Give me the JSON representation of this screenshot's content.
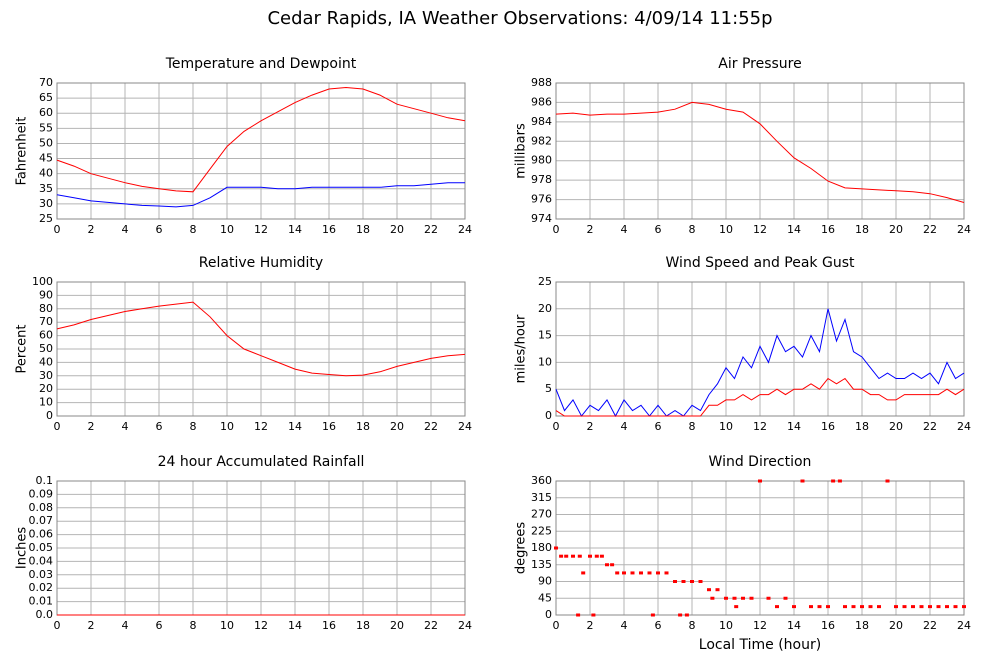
{
  "title": "Cedar Rapids, IA Weather Observations: 4/09/14 11:55p",
  "chart_data": [
    {
      "type": "line",
      "title": "Temperature and Dewpoint",
      "ylabel": "Fahrenheit",
      "x": [
        0,
        1,
        2,
        3,
        4,
        5,
        6,
        7,
        8,
        9,
        10,
        11,
        12,
        13,
        14,
        15,
        16,
        17,
        18,
        19,
        20,
        21,
        22,
        23,
        24
      ],
      "series": [
        {
          "color": "#ff0000",
          "values": [
            44.5,
            42.5,
            40,
            38.5,
            37,
            35.8,
            35,
            34.3,
            34,
            41.5,
            49,
            54,
            57.5,
            60.5,
            63.5,
            66,
            68,
            68.5,
            68,
            66,
            63,
            61.5,
            60,
            58.5,
            57.5
          ]
        },
        {
          "color": "#0000ff",
          "values": [
            33,
            32,
            31,
            30.5,
            30,
            29.5,
            29.3,
            29,
            29.5,
            32,
            35.5,
            35.5,
            35.5,
            35,
            35,
            35.5,
            35.5,
            35.5,
            35.5,
            35.5,
            36,
            36,
            36.5,
            37,
            37
          ]
        }
      ],
      "xlim": [
        0,
        24
      ],
      "xticks": [
        0,
        2,
        4,
        6,
        8,
        10,
        12,
        14,
        16,
        18,
        20,
        22,
        24
      ],
      "ylim": [
        25,
        70
      ],
      "yticks": [
        25,
        30,
        35,
        40,
        45,
        50,
        55,
        60,
        65,
        70
      ],
      "grid": true
    },
    {
      "type": "line",
      "title": "Air Pressure",
      "ylabel": "millibars",
      "x": [
        0,
        1,
        2,
        3,
        4,
        5,
        6,
        7,
        8,
        9,
        10,
        11,
        12,
        13,
        14,
        15,
        16,
        17,
        18,
        19,
        20,
        21,
        22,
        23,
        24
      ],
      "series": [
        {
          "color": "#ff0000",
          "values": [
            984.8,
            984.9,
            984.7,
            984.8,
            984.8,
            984.9,
            985,
            985.3,
            986,
            985.8,
            985.3,
            985,
            983.8,
            982,
            980.3,
            979.2,
            977.9,
            977.2,
            977.1,
            977,
            976.9,
            976.8,
            976.6,
            976.2,
            975.7
          ]
        }
      ],
      "xlim": [
        0,
        24
      ],
      "xticks": [
        0,
        2,
        4,
        6,
        8,
        10,
        12,
        14,
        16,
        18,
        20,
        22,
        24
      ],
      "ylim": [
        974,
        988
      ],
      "yticks": [
        974,
        976,
        978,
        980,
        982,
        984,
        986,
        988
      ],
      "grid": true
    },
    {
      "type": "line",
      "title": "Relative Humidity",
      "ylabel": "Percent",
      "x": [
        0,
        1,
        2,
        3,
        4,
        5,
        6,
        7,
        8,
        9,
        10,
        11,
        12,
        13,
        14,
        15,
        16,
        17,
        18,
        19,
        20,
        21,
        22,
        23,
        24
      ],
      "series": [
        {
          "color": "#ff0000",
          "values": [
            65,
            68,
            72,
            75,
            78,
            80,
            82,
            83.5,
            85,
            74,
            60,
            50,
            45,
            40,
            35,
            32,
            31,
            30,
            30.5,
            33,
            37,
            40,
            43,
            45,
            46
          ]
        }
      ],
      "xlim": [
        0,
        24
      ],
      "xticks": [
        0,
        2,
        4,
        6,
        8,
        10,
        12,
        14,
        16,
        18,
        20,
        22,
        24
      ],
      "ylim": [
        0,
        100
      ],
      "yticks": [
        0,
        10,
        20,
        30,
        40,
        50,
        60,
        70,
        80,
        90,
        100
      ],
      "grid": true
    },
    {
      "type": "line",
      "title": "Wind Speed and Peak Gust",
      "ylabel": "miles/hour",
      "x": [
        0,
        0.5,
        1,
        1.5,
        2,
        2.5,
        3,
        3.5,
        4,
        4.5,
        5,
        5.5,
        6,
        6.5,
        7,
        7.5,
        8,
        8.5,
        9,
        9.5,
        10,
        10.5,
        11,
        11.5,
        12,
        12.5,
        13,
        13.5,
        14,
        14.5,
        15,
        15.5,
        16,
        16.5,
        17,
        17.5,
        18,
        18.5,
        19,
        19.5,
        20,
        20.5,
        21,
        21.5,
        22,
        22.5,
        23,
        23.5,
        24
      ],
      "series": [
        {
          "color": "#0000ff",
          "values": [
            5,
            1,
            3,
            0,
            2,
            1,
            3,
            0,
            3,
            1,
            2,
            0,
            2,
            0,
            1,
            0,
            2,
            1,
            4,
            6,
            9,
            7,
            11,
            9,
            13,
            10,
            15,
            12,
            13,
            11,
            15,
            12,
            20,
            14,
            18,
            12,
            11,
            9,
            7,
            8,
            7,
            7,
            8,
            7,
            8,
            6,
            10,
            7,
            8
          ]
        },
        {
          "color": "#ff0000",
          "values": [
            1,
            0,
            0,
            0,
            0,
            0,
            0,
            0,
            0,
            0,
            0,
            0,
            0,
            0,
            0,
            0,
            0,
            0,
            2,
            2,
            3,
            3,
            4,
            3,
            4,
            4,
            5,
            4,
            5,
            5,
            6,
            5,
            7,
            6,
            7,
            5,
            5,
            4,
            4,
            3,
            3,
            4,
            4,
            4,
            4,
            4,
            5,
            4,
            5
          ]
        }
      ],
      "xlim": [
        0,
        24
      ],
      "xticks": [
        0,
        2,
        4,
        6,
        8,
        10,
        12,
        14,
        16,
        18,
        20,
        22,
        24
      ],
      "ylim": [
        0,
        25
      ],
      "yticks": [
        0,
        5,
        10,
        15,
        20,
        25
      ],
      "grid": true
    },
    {
      "type": "line",
      "title": "24 hour Accumulated Rainfall",
      "ylabel": "Inches",
      "x": [
        0,
        24
      ],
      "series": [
        {
          "color": "#ff0000",
          "values": [
            0,
            0
          ]
        }
      ],
      "xlim": [
        0,
        24
      ],
      "xticks": [
        0,
        2,
        4,
        6,
        8,
        10,
        12,
        14,
        16,
        18,
        20,
        22,
        24
      ],
      "ylim": [
        0,
        0.1
      ],
      "yticks": [
        {
          "value": 0,
          "label": "0.0"
        },
        0.01,
        0.02,
        0.03,
        0.04,
        0.05,
        0.06,
        0.07,
        0.08,
        0.09,
        0.1
      ],
      "grid": true
    },
    {
      "type": "scatter",
      "title": "Wind Direction",
      "ylabel": "degrees",
      "xlabel": "Local Time (hour)",
      "x": [
        0,
        0.3,
        0.6,
        1,
        1.3,
        1.4,
        1.6,
        2,
        2.2,
        2.4,
        2.7,
        3,
        3.3,
        3.6,
        4,
        4.5,
        5,
        5.5,
        5.7,
        6,
        6.5,
        7,
        7.3,
        7.5,
        7.7,
        8,
        8.5,
        9,
        9.2,
        9.5,
        10,
        10.5,
        10.6,
        11,
        11.5,
        12,
        12.5,
        13,
        13.5,
        14,
        14.5,
        15,
        15.5,
        16,
        16.3,
        16.7,
        17,
        17.5,
        18,
        18.5,
        19,
        19.5,
        20,
        20.5,
        21,
        21.5,
        22,
        22.5,
        23,
        23.5,
        24
      ],
      "values": [
        180,
        158,
        158,
        158,
        0,
        158,
        113,
        158,
        0,
        158,
        158,
        135,
        135,
        113,
        113,
        113,
        113,
        113,
        0,
        113,
        113,
        90,
        0,
        90,
        0,
        90,
        90,
        68,
        45,
        68,
        45,
        45,
        22.5,
        45,
        45,
        360,
        45,
        22.5,
        45,
        22.5,
        360,
        22.5,
        22.5,
        22.5,
        360,
        360,
        22.5,
        22.5,
        22.5,
        22.5,
        22.5,
        360,
        22.5,
        22.5,
        22.5,
        22.5,
        22.5,
        22.5,
        22.5,
        22.5,
        22.5
      ],
      "color": "#ff0000",
      "xlim": [
        0,
        24
      ],
      "xticks": [
        0,
        2,
        4,
        6,
        8,
        10,
        12,
        14,
        16,
        18,
        20,
        22,
        24
      ],
      "ylim": [
        0,
        360
      ],
      "yticks": [
        0,
        45,
        90,
        135,
        180,
        225,
        270,
        315,
        360
      ],
      "grid": true
    }
  ]
}
